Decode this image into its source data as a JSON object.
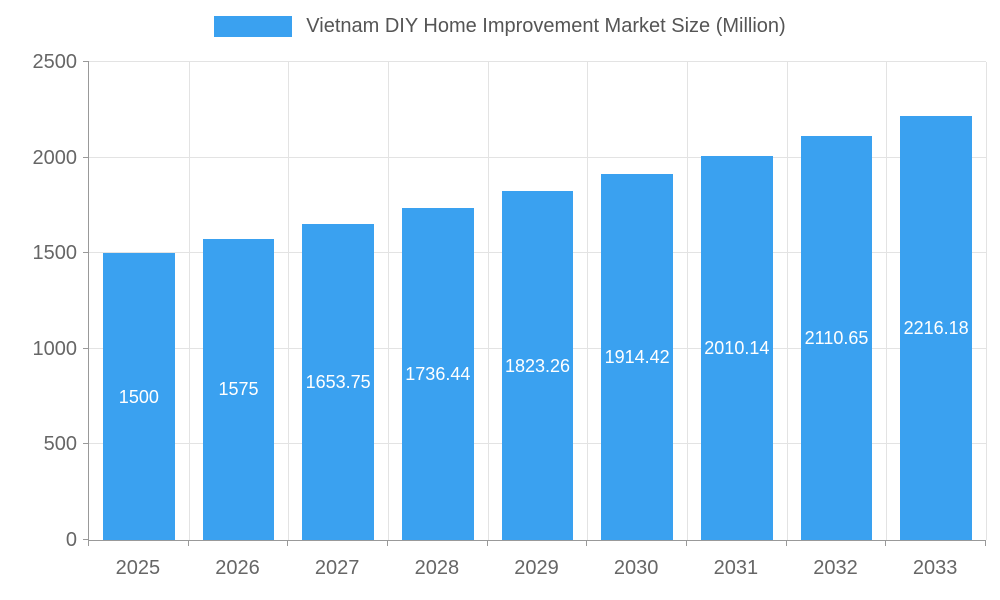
{
  "chart_data": {
    "type": "bar",
    "title": "Vietnam DIY Home Improvement Market Size (Million)",
    "categories": [
      "2025",
      "2026",
      "2027",
      "2028",
      "2029",
      "2030",
      "2031",
      "2032",
      "2033"
    ],
    "values": [
      1500,
      1575,
      1653.75,
      1736.44,
      1823.26,
      1914.42,
      2010.14,
      2110.65,
      2216.18
    ],
    "value_labels": [
      "1500",
      "1575",
      "1653.75",
      "1736.44",
      "1823.26",
      "1914.42",
      "2010.14",
      "2110.65",
      "2216.18"
    ],
    "xlabel": "",
    "ylabel": "",
    "ylim": [
      0,
      2500
    ],
    "yticks": [
      0,
      500,
      1000,
      1500,
      2000,
      2500
    ],
    "grid": true,
    "legend_position": "top",
    "colors": {
      "bar": "#3aa1f0",
      "value_label": "#ffffff",
      "axis_text": "#666666",
      "title_text": "#555555",
      "gridline": "#e3e3e3",
      "axis_line": "#999999",
      "background": "#ffffff"
    }
  }
}
